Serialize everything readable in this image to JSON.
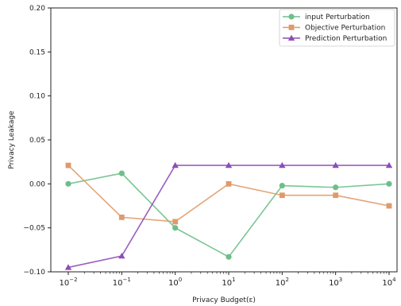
{
  "chart_data": {
    "type": "line",
    "title": "",
    "xlabel": "Privacy Budget(ε)",
    "ylabel": "Privacy Leakage",
    "x_scale": "log",
    "x": [
      0.01,
      0.1,
      1,
      10,
      100,
      1000,
      10000
    ],
    "x_tick_labels": [
      {
        "base": "10",
        "exp": "−2"
      },
      {
        "base": "10",
        "exp": "−1"
      },
      {
        "base": "10",
        "exp": "0"
      },
      {
        "base": "10",
        "exp": "1"
      },
      {
        "base": "10",
        "exp": "2"
      },
      {
        "base": "10",
        "exp": "3"
      },
      {
        "base": "10",
        "exp": "4"
      }
    ],
    "ylim": [
      -0.1,
      0.2
    ],
    "y_ticks": [
      "−0.10",
      "−0.05",
      "0.00",
      "0.05",
      "0.10",
      "0.15",
      "0.20"
    ],
    "y_tick_values": [
      -0.1,
      -0.05,
      0.0,
      0.05,
      0.1,
      0.15,
      0.2
    ],
    "grid": false,
    "legend_position": "top-right",
    "series": [
      {
        "name": "input Perturbation",
        "color": "#6dbf8a",
        "marker": "circle",
        "values": [
          0.0,
          0.012,
          -0.05,
          -0.083,
          -0.002,
          -0.004,
          0.0
        ]
      },
      {
        "name": "Objective Perturbation",
        "color": "#e09a6a",
        "marker": "square",
        "values": [
          0.021,
          -0.038,
          -0.043,
          0.0,
          -0.013,
          -0.013,
          -0.025
        ]
      },
      {
        "name": "Prediction Perturbation",
        "color": "#8e4db8",
        "marker": "triangle",
        "values": [
          -0.095,
          -0.082,
          0.021,
          0.021,
          0.021,
          0.021,
          0.021
        ]
      }
    ]
  }
}
